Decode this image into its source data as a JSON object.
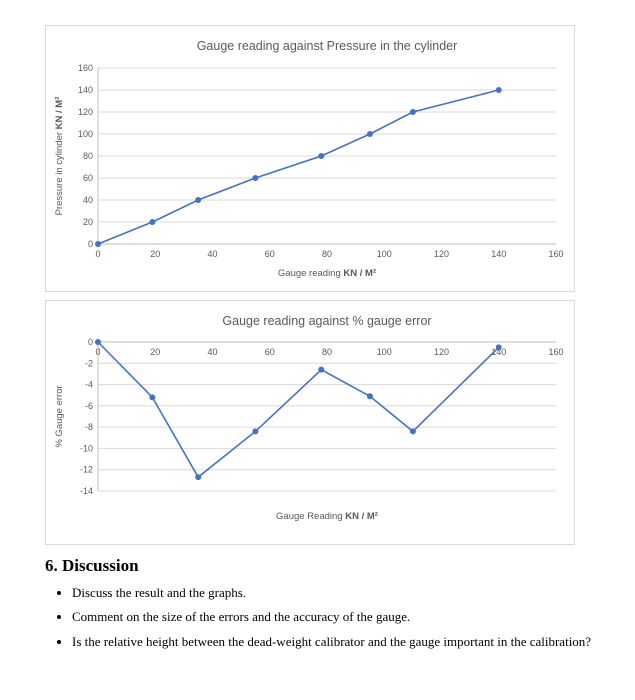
{
  "chart_data": [
    {
      "type": "line",
      "title": "Gauge reading against Pressure in the cylinder",
      "xlabel": "Gauge reading KN / M²",
      "xlabel_bold": "KN / M²",
      "ylabel": "Pressure in cylinder KN / M²",
      "ylabel_bold": "KN / M²",
      "x": [
        0,
        19,
        35,
        55,
        78,
        95,
        110,
        140
      ],
      "y": [
        0,
        20,
        40,
        60,
        80,
        100,
        120,
        140
      ],
      "xlim": [
        0,
        160
      ],
      "ylim": [
        0,
        160
      ],
      "xticks": [
        0,
        20,
        40,
        60,
        80,
        100,
        120,
        140,
        160
      ],
      "yticks": [
        0,
        20,
        40,
        60,
        80,
        100,
        120,
        140,
        160
      ],
      "grid": true,
      "legend": "none",
      "line_color": "#4472C4",
      "marker": "circle"
    },
    {
      "type": "line",
      "title": "Gauge reading against % gauge error",
      "xlabel": "Gauge Reading KN / M²",
      "xlabel_bold": "KN / M²",
      "ylabel": "% Gauge error",
      "ylabel_bold": "",
      "x": [
        0,
        19,
        35,
        55,
        78,
        95,
        110,
        140
      ],
      "y": [
        0,
        -5.2,
        -12.7,
        -8.4,
        -2.6,
        -5.1,
        -8.4,
        -0.5
      ],
      "xlim": [
        0,
        160
      ],
      "ylim": [
        -14,
        0
      ],
      "xticks": [
        0,
        20,
        40,
        60,
        80,
        100,
        120,
        140,
        160
      ],
      "yticks": [
        0,
        -2,
        -4,
        -6,
        -8,
        -10,
        -12,
        -14
      ],
      "grid": true,
      "legend": "none",
      "line_color": "#4472C4",
      "marker": "circle"
    }
  ],
  "colors": {
    "accent": "#4472C4",
    "gridline": "#d9d9d9",
    "axis_line": "#bfbfbf",
    "chart_text": "#595959",
    "box_border": "#d9d9d9"
  },
  "discussion": {
    "heading": "6. Discussion",
    "bullets": [
      "Discuss the result and the graphs.",
      "Comment on the size of the errors and the accuracy of the gauge.",
      "Is the relative height between the dead-weight calibrator and the gauge important in the calibration?"
    ]
  }
}
